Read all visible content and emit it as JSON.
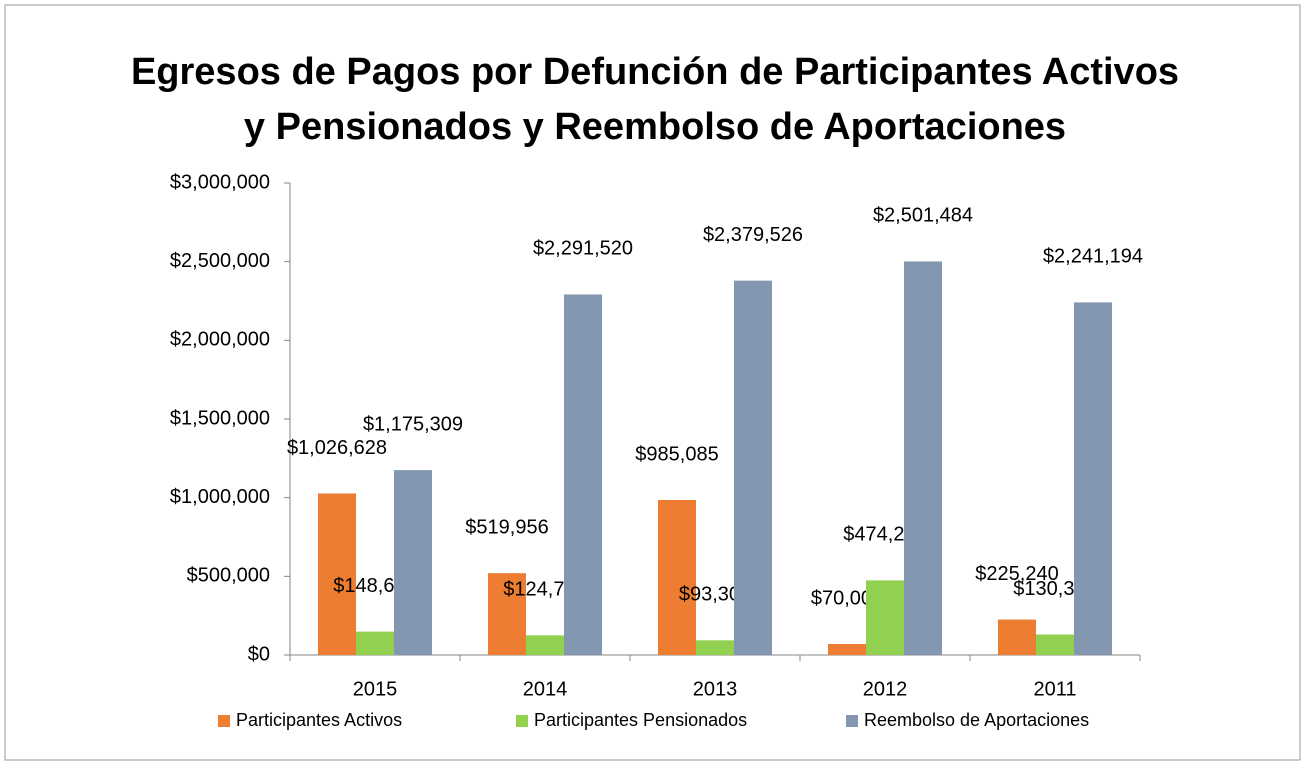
{
  "chart_data": {
    "type": "bar",
    "title": "Egresos de Pagos por Defunción de Participantes Activos y Pensionados y Reembolso de Aportaciones",
    "categories": [
      "2015",
      "2014",
      "2013",
      "2012",
      "2011"
    ],
    "series": [
      {
        "name": "Participantes Activos",
        "color": "#ed7d31",
        "values": [
          1026628,
          519956,
          985085,
          70000,
          225240
        ],
        "value_labels": [
          "$1,026,628",
          "$519,956",
          "$985,085",
          "$70,000",
          "$225,240"
        ]
      },
      {
        "name": "Participantes Pensionados",
        "color": "#92d050",
        "values": [
          148681,
          124717,
          93300,
          474233,
          130365
        ],
        "value_labels": [
          "$148,681",
          "$124,717",
          "$93,300",
          "$474,233",
          "$130,365"
        ]
      },
      {
        "name": "Reembolso de Aportaciones",
        "color": "#8497b0",
        "values": [
          1175309,
          2291520,
          2379526,
          2501484,
          2241194
        ],
        "value_labels": [
          "$1,175,309",
          "$2,291,520",
          "$2,379,526",
          "$2,501,484",
          "$2,241,194"
        ]
      }
    ],
    "ylim": [
      0,
      3000000
    ],
    "yticks": [
      {
        "value": 0,
        "label": "$0"
      },
      {
        "value": 500000,
        "label": "$500,000"
      },
      {
        "value": 1000000,
        "label": "$1,000,000"
      },
      {
        "value": 1500000,
        "label": "$1,500,000"
      },
      {
        "value": 2000000,
        "label": "$2,000,000"
      },
      {
        "value": 2500000,
        "label": "$2,500,000"
      },
      {
        "value": 3000000,
        "label": "$3,000,000"
      }
    ],
    "grid": false,
    "legend": "bottom"
  }
}
